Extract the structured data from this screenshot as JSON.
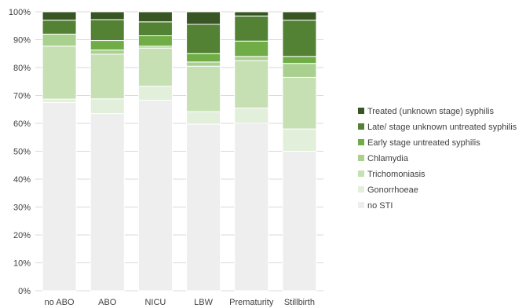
{
  "chart_data": {
    "type": "bar",
    "stacked": true,
    "percent": true,
    "categories": [
      "no ABO",
      "ABO",
      "NICU",
      "LBW",
      "Prematurity",
      "Stillbirth"
    ],
    "ylim": [
      0,
      100
    ],
    "yticks": [
      "0%",
      "10%",
      "20%",
      "30%",
      "40%",
      "50%",
      "60%",
      "70%",
      "80%",
      "90%",
      "100%"
    ],
    "grid": true,
    "legend_position": "right",
    "series": [
      {
        "name": "no STI",
        "color": "#eeeeee",
        "values": [
          67.5,
          63.5,
          68.3,
          59.7,
          60.0,
          50.0
        ]
      },
      {
        "name": "Gonorrhoeae",
        "color": "#e2efda",
        "values": [
          1.2,
          5.3,
          5.0,
          4.5,
          5.5,
          8.0
        ]
      },
      {
        "name": "Trichomoniasis",
        "color": "#c6e0b4",
        "values": [
          19.0,
          16.0,
          13.7,
          16.3,
          17.0,
          18.5
        ]
      },
      {
        "name": "Chlamydia",
        "color": "#a9d08e",
        "values": [
          4.3,
          1.5,
          0.7,
          1.5,
          1.5,
          5.0
        ]
      },
      {
        "name": "Early stage untreated syphilis",
        "color": "#70ad47",
        "values": [
          0.0,
          3.4,
          3.7,
          3.0,
          5.5,
          2.5
        ]
      },
      {
        "name": "Late/ stage unknown untreated syphilis",
        "color": "#548235",
        "values": [
          5.0,
          7.5,
          5.0,
          10.5,
          9.0,
          13.0
        ]
      },
      {
        "name": "Treated (unknown stage) syphilis",
        "color": "#375623",
        "values": [
          3.0,
          2.8,
          3.6,
          4.5,
          1.5,
          3.0
        ]
      }
    ]
  }
}
